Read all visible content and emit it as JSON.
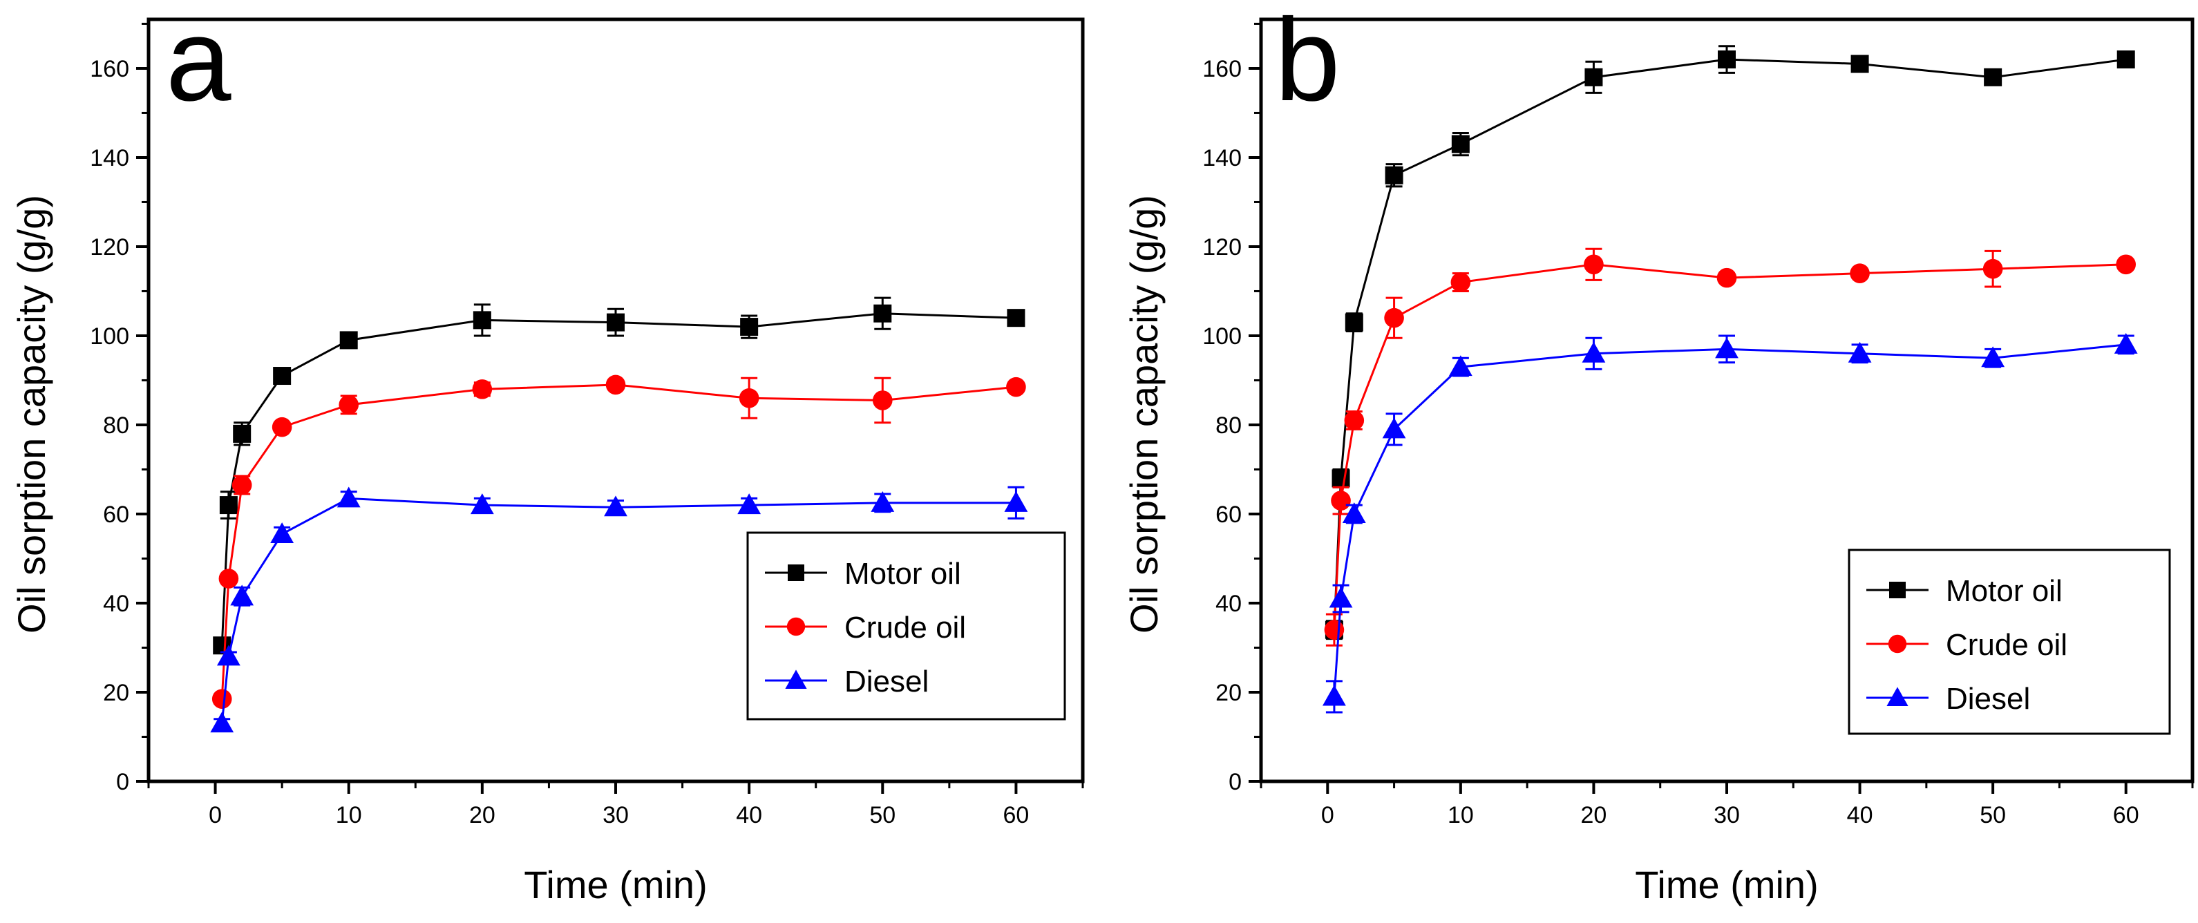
{
  "chart_data": [
    {
      "type": "line",
      "panel_label": "a",
      "xlabel": "Time (min)",
      "ylabel": "Oil sorption capacity (g/g)",
      "xlim": [
        -5,
        65
      ],
      "ylim": [
        0,
        171
      ],
      "xticks": [
        0,
        10,
        20,
        30,
        40,
        50,
        60
      ],
      "yticks": [
        0,
        20,
        40,
        60,
        80,
        100,
        120,
        140,
        160
      ],
      "legend_position": "lower-right",
      "x": [
        0.5,
        1,
        2,
        5,
        10,
        20,
        30,
        40,
        50,
        60
      ],
      "series": [
        {
          "name": "Motor oil",
          "color": "#000000",
          "marker": "square",
          "values": [
            30.5,
            62,
            78,
            91,
            99,
            103.5,
            103,
            102,
            105,
            104
          ],
          "errors": [
            1,
            3,
            2.5,
            1,
            1,
            3.5,
            3,
            2.5,
            3.5,
            1
          ]
        },
        {
          "name": "Crude oil",
          "color": "#ff0000",
          "marker": "circle",
          "values": [
            18.5,
            45.5,
            66.5,
            79.5,
            84.5,
            88,
            89,
            86,
            85.5,
            88.5
          ],
          "errors": [
            1,
            1,
            2,
            1,
            2,
            1.5,
            1,
            4.5,
            5,
            1
          ]
        },
        {
          "name": "Diesel",
          "color": "#0000ff",
          "marker": "triangle",
          "values": [
            13,
            28,
            41.5,
            55.5,
            63.5,
            62,
            61.5,
            62,
            62.5,
            62.5
          ],
          "errors": [
            1,
            1,
            2,
            1.5,
            1.5,
            1.5,
            1.5,
            1.5,
            2,
            3.5
          ]
        }
      ]
    },
    {
      "type": "line",
      "panel_label": "b",
      "xlabel": "Time (min)",
      "ylabel": "Oil sorption capacity (g/g)",
      "xlim": [
        -5,
        65
      ],
      "ylim": [
        0,
        171
      ],
      "xticks": [
        0,
        10,
        20,
        30,
        40,
        50,
        60
      ],
      "yticks": [
        0,
        20,
        40,
        60,
        80,
        100,
        120,
        140,
        160
      ],
      "legend_position": "lower-right",
      "x": [
        0.5,
        1,
        2,
        5,
        10,
        20,
        30,
        40,
        50,
        60
      ],
      "series": [
        {
          "name": "Motor oil",
          "color": "#000000",
          "marker": "square",
          "values": [
            34,
            68,
            103,
            136,
            143,
            158,
            162,
            161,
            158,
            162
          ],
          "errors": [
            2,
            2,
            2,
            2.5,
            2.5,
            3.5,
            3,
            1.5,
            1,
            1
          ]
        },
        {
          "name": "Crude oil",
          "color": "#ff0000",
          "marker": "circle",
          "values": [
            34,
            63,
            81,
            104,
            112,
            116,
            113,
            114,
            115,
            116
          ],
          "errors": [
            3.5,
            3,
            2,
            4.5,
            2,
            3.5,
            1,
            1,
            4,
            1
          ]
        },
        {
          "name": "Diesel",
          "color": "#0000ff",
          "marker": "triangle",
          "values": [
            19,
            41,
            60,
            79,
            93,
            96,
            97,
            96,
            95,
            98
          ],
          "errors": [
            3.5,
            3,
            2,
            3.5,
            2,
            3.5,
            3,
            2,
            2,
            2
          ]
        }
      ]
    }
  ]
}
